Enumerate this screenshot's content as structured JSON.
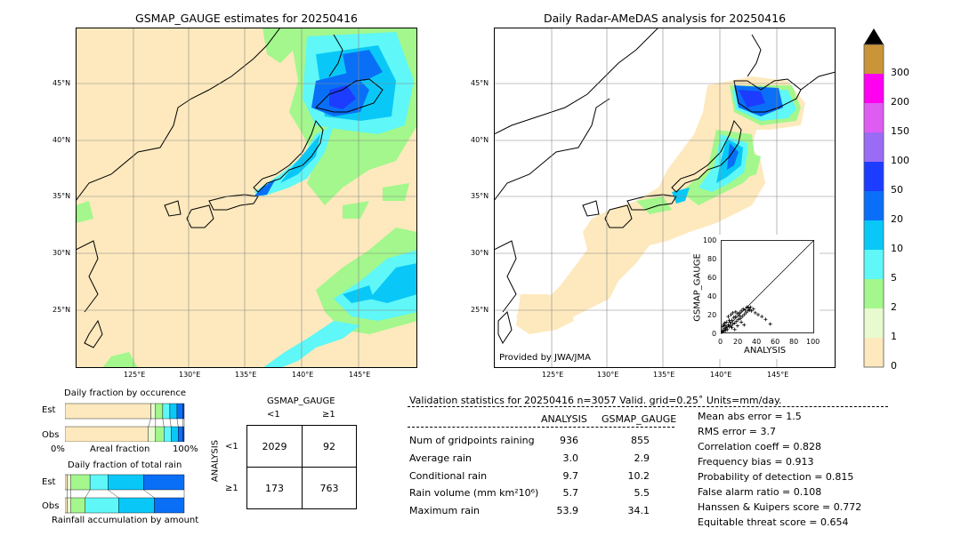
{
  "left_map": {
    "title": "GSMAP_GAUGE estimates for 20250416",
    "lat_labels": [
      "45°N",
      "40°N",
      "35°N",
      "30°N",
      "25°N"
    ],
    "lon_labels": [
      "125°E",
      "130°E",
      "135°E",
      "140°E",
      "145°E"
    ]
  },
  "right_map": {
    "title": "Daily Radar-AMeDAS analysis for 20250416",
    "lat_labels": [
      "45°N",
      "40°N",
      "35°N",
      "30°N",
      "25°N"
    ],
    "lon_labels": [
      "125°E",
      "130°E",
      "135°E",
      "140°E",
      "145°E"
    ],
    "credit": "Provided by JWA/JMA"
  },
  "colorbar": {
    "levels": [
      "0",
      "1",
      "2",
      "5",
      "10",
      "20",
      "50",
      "100",
      "150",
      "200",
      "300"
    ],
    "colors": [
      "#fde9bd",
      "#e8fbd0",
      "#a3f78c",
      "#5ff7f7",
      "#09c8f7",
      "#0a6ff7",
      "#1c3cff",
      "#9a6cf5",
      "#df5cf3",
      "#ff00f0",
      "#c99538"
    ]
  },
  "chart_data": [
    {
      "type": "scatter",
      "title": "",
      "xlabel": "ANALYSIS",
      "ylabel": "GSMAP_GAUGE",
      "xlim": [
        0,
        100
      ],
      "ylim": [
        0,
        100
      ],
      "x_ticks": [
        "0",
        "20",
        "40",
        "60",
        "80",
        "100"
      ],
      "y_ticks": [
        "0",
        "20",
        "40",
        "60",
        "80",
        "100"
      ],
      "reference_line": "y=x",
      "points": [
        [
          1,
          1
        ],
        [
          2,
          3
        ],
        [
          3,
          2
        ],
        [
          4,
          5
        ],
        [
          5,
          3
        ],
        [
          5,
          8
        ],
        [
          6,
          6
        ],
        [
          7,
          4
        ],
        [
          8,
          9
        ],
        [
          9,
          7
        ],
        [
          10,
          12
        ],
        [
          11,
          8
        ],
        [
          12,
          14
        ],
        [
          13,
          10
        ],
        [
          14,
          17
        ],
        [
          15,
          11
        ],
        [
          16,
          18
        ],
        [
          17,
          13
        ],
        [
          18,
          21
        ],
        [
          19,
          15
        ],
        [
          20,
          22
        ],
        [
          21,
          16
        ],
        [
          22,
          24
        ],
        [
          23,
          18
        ],
        [
          24,
          26
        ],
        [
          25,
          20
        ],
        [
          26,
          25
        ],
        [
          27,
          22
        ],
        [
          28,
          28
        ],
        [
          29,
          24
        ],
        [
          30,
          27
        ],
        [
          31,
          25
        ],
        [
          32,
          28
        ],
        [
          33,
          24
        ],
        [
          35,
          26
        ],
        [
          37,
          22
        ],
        [
          40,
          20
        ],
        [
          44,
          18
        ],
        [
          48,
          15
        ],
        [
          53,
          10
        ],
        [
          3,
          9
        ],
        [
          6,
          12
        ],
        [
          9,
          14
        ],
        [
          12,
          6
        ],
        [
          15,
          4
        ],
        [
          18,
          8
        ],
        [
          22,
          12
        ],
        [
          25,
          9
        ],
        [
          8,
          18
        ],
        [
          11,
          20
        ],
        [
          2,
          7
        ],
        [
          4,
          11
        ],
        [
          13,
          22
        ],
        [
          16,
          23
        ],
        [
          20,
          19
        ]
      ]
    },
    {
      "type": "bar",
      "title": "Daily fraction by occurence",
      "categories": [
        "Est",
        "Obs"
      ],
      "xlabel": "Areal fraction",
      "x_ticks": [
        "0%",
        "100%"
      ],
      "stacked_percent": true,
      "series": [
        {
          "name": "0-1",
          "values": [
            72,
            70
          ]
        },
        {
          "name": "1-2",
          "values": [
            4,
            6
          ]
        },
        {
          "name": "2-5",
          "values": [
            6,
            7
          ]
        },
        {
          "name": "5-10",
          "values": [
            6,
            6
          ]
        },
        {
          "name": "10-20",
          "values": [
            6,
            6
          ]
        },
        {
          "name": "20-50",
          "values": [
            5,
            4
          ]
        },
        {
          "name": "50-100",
          "values": [
            1,
            1
          ]
        }
      ]
    },
    {
      "type": "bar",
      "title": "Daily fraction of total rain",
      "categories": [
        "Est",
        "Obs"
      ],
      "xlabel": "Rainfall accumulation by amount",
      "stacked_percent": true,
      "series": [
        {
          "name": "0-1",
          "values": [
            2,
            2
          ]
        },
        {
          "name": "1-2",
          "values": [
            3,
            3
          ]
        },
        {
          "name": "2-5",
          "values": [
            16,
            12
          ]
        },
        {
          "name": "5-10",
          "values": [
            15,
            28
          ]
        },
        {
          "name": "10-20",
          "values": [
            30,
            30
          ]
        },
        {
          "name": "20-50",
          "values": [
            34,
            25
          ]
        }
      ]
    },
    {
      "type": "table",
      "title": "GSMAP_GAUGE",
      "col_headers": [
        "<1",
        "≥1"
      ],
      "row_title": "ANALYSIS",
      "row_headers": [
        "<1",
        "≥1"
      ],
      "cells": [
        [
          "2029",
          "92"
        ],
        [
          "173",
          "763"
        ]
      ]
    }
  ],
  "stats": {
    "header": "Validation statistics for 20250416  n=3057 Valid. grid=0.25˚ Units=mm/day.",
    "col_analysis": "ANALYSIS",
    "col_gsmap": "GSMAP_GAUGE",
    "rows": [
      {
        "label": "Num of gridpoints raining",
        "analysis": "936",
        "gsmap": "855"
      },
      {
        "label": "Average rain",
        "analysis": "3.0",
        "gsmap": "2.9"
      },
      {
        "label": "Conditional rain",
        "analysis": "9.7",
        "gsmap": "10.2"
      },
      {
        "label": "Rain volume (mm km²10⁶)",
        "analysis": "5.7",
        "gsmap": "5.5"
      },
      {
        "label": "Maximum rain",
        "analysis": "53.9",
        "gsmap": "34.1"
      }
    ],
    "scores": [
      "Mean abs error =    1.5",
      "RMS error =    3.7",
      "Correlation coeff =  0.828",
      "Frequency bias =  0.913",
      "Probability of detection =  0.815",
      "False alarm ratio =  0.108",
      "Hanssen & Kuipers score =  0.772",
      "Equitable threat score =  0.654"
    ]
  }
}
